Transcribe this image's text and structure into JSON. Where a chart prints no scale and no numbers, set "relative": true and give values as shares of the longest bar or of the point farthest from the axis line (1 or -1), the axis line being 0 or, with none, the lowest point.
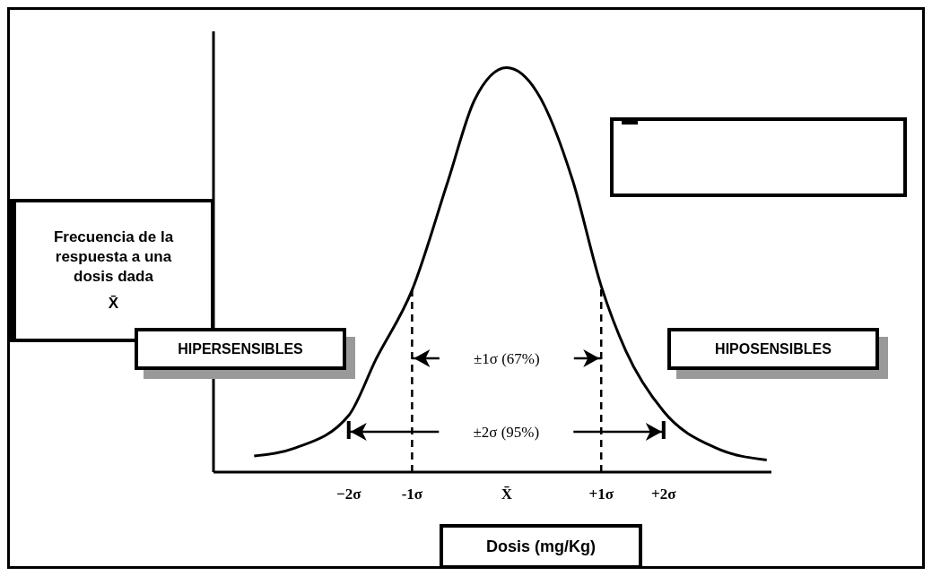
{
  "chart_data": {
    "type": "line",
    "relative": true,
    "xlabel": "Dosis (mg/Kg)",
    "ylabel": "Frecuencia de la respuesta a una dosis dada",
    "xlim": [
      -3.1,
      2.8
    ],
    "xticks": [
      {
        "value": -1.67,
        "label": "−2σ"
      },
      {
        "value": -1,
        "label": "-1σ"
      },
      {
        "value": 0,
        "label": "X̄"
      },
      {
        "value": 1,
        "label": "+1σ"
      },
      {
        "value": 1.66,
        "label": "+2σ"
      }
    ],
    "series": [
      {
        "color": "#000000",
        "x": [
          -2.67,
          -2.23,
          -1.67,
          -1.38,
          -1,
          -0.62,
          -0.34,
          0,
          0.32,
          0.7,
          1,
          1.26,
          1.66,
          2.21,
          2.75
        ],
        "values": [
          0.04,
          0.06,
          0.14,
          0.28,
          0.45,
          0.72,
          0.92,
          1,
          0.94,
          0.72,
          0.46,
          0.3,
          0.15,
          0.06,
          0.03
        ]
      }
    ],
    "ref_lines": [
      {
        "axis": "x",
        "value": -1,
        "line_style": "dashed"
      },
      {
        "axis": "x",
        "value": 1,
        "line_style": "dashed"
      }
    ],
    "annotations": [
      "X̄",
      "HIPERSENSIBLES",
      "HIPOSENSIBLES",
      "±1σ (67%)",
      "±2σ (95%)"
    ],
    "marker": "none",
    "line_style": "solid",
    "grid": false,
    "legend": false
  }
}
